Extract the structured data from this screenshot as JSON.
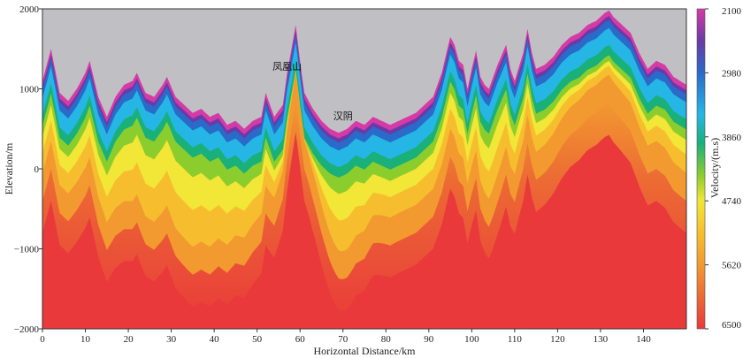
{
  "chart_data": {
    "type": "heatmap",
    "title": "",
    "xlabel": "Horizontal Distance/km",
    "ylabel": "Elevation/m",
    "xlim": [
      0,
      150
    ],
    "ylim": [
      -2000,
      2000
    ],
    "xticks": [
      0,
      10,
      20,
      30,
      40,
      50,
      60,
      70,
      80,
      90,
      100,
      110,
      120,
      130,
      140
    ],
    "yticks": [
      2000,
      1000,
      0,
      -1000,
      -2000
    ],
    "yticks_labels": [
      "2000",
      "1000",
      "0",
      "−1000",
      "−2000"
    ],
    "colorbar": {
      "label": "Velocity/(m.s)",
      "ticks": [
        2100,
        2980,
        3860,
        4740,
        5620,
        6500
      ],
      "range": [
        2100,
        6500
      ],
      "position": "right"
    },
    "colors": {
      "sky": "#c0c0c4",
      "v2100": "#d63aa6",
      "v2500": "#6a3aa6",
      "v2980": "#2a6ac9",
      "v3400": "#26b6e6",
      "v3860": "#19b07a",
      "v4300": "#8ccd2e",
      "v4740": "#f2e636",
      "v5200": "#f6be2f",
      "v5620": "#f29a30",
      "v6100": "#ec6a34",
      "v6500": "#e9393a"
    },
    "annotations": [
      {
        "text": "凤凰山",
        "x": 57,
        "y": 1240
      },
      {
        "text": "汉阴",
        "x": 70,
        "y": 620
      }
    ],
    "topography": {
      "x": [
        0,
        2,
        4,
        6,
        8,
        10,
        11,
        13,
        15,
        17,
        19,
        21,
        22,
        24,
        26,
        28,
        29,
        31,
        33,
        35,
        37,
        39,
        41,
        43,
        45,
        47,
        49,
        51,
        52,
        54,
        56,
        57,
        58,
        59,
        60,
        61,
        63,
        65,
        67,
        69,
        71,
        73,
        75,
        77,
        79,
        81,
        83,
        85,
        87,
        89,
        91,
        93,
        95,
        96,
        97,
        98,
        99,
        100,
        101,
        102,
        103,
        104,
        106,
        108,
        109,
        110,
        112,
        113,
        114,
        115,
        117,
        119,
        121,
        123,
        125,
        127,
        129,
        131,
        132,
        133,
        135,
        137,
        139,
        141,
        143,
        145,
        147,
        150
      ],
      "y": [
        1100,
        1500,
        950,
        850,
        1000,
        1200,
        1350,
        900,
        650,
        900,
        1050,
        1100,
        1200,
        950,
        900,
        1050,
        1150,
        900,
        800,
        700,
        750,
        650,
        700,
        550,
        600,
        500,
        600,
        650,
        950,
        650,
        800,
        1200,
        1500,
        1800,
        1350,
        950,
        750,
        600,
        500,
        450,
        500,
        600,
        550,
        650,
        600,
        550,
        600,
        650,
        700,
        800,
        900,
        1200,
        1650,
        1550,
        1350,
        1300,
        1000,
        1250,
        1480,
        1150,
        1050,
        1000,
        1300,
        1550,
        1250,
        1100,
        1450,
        1750,
        1450,
        1250,
        1300,
        1400,
        1550,
        1650,
        1700,
        1800,
        1850,
        1950,
        1980,
        1900,
        1800,
        1700,
        1450,
        1250,
        1350,
        1300,
        1150,
        1050
      ]
    }
  }
}
